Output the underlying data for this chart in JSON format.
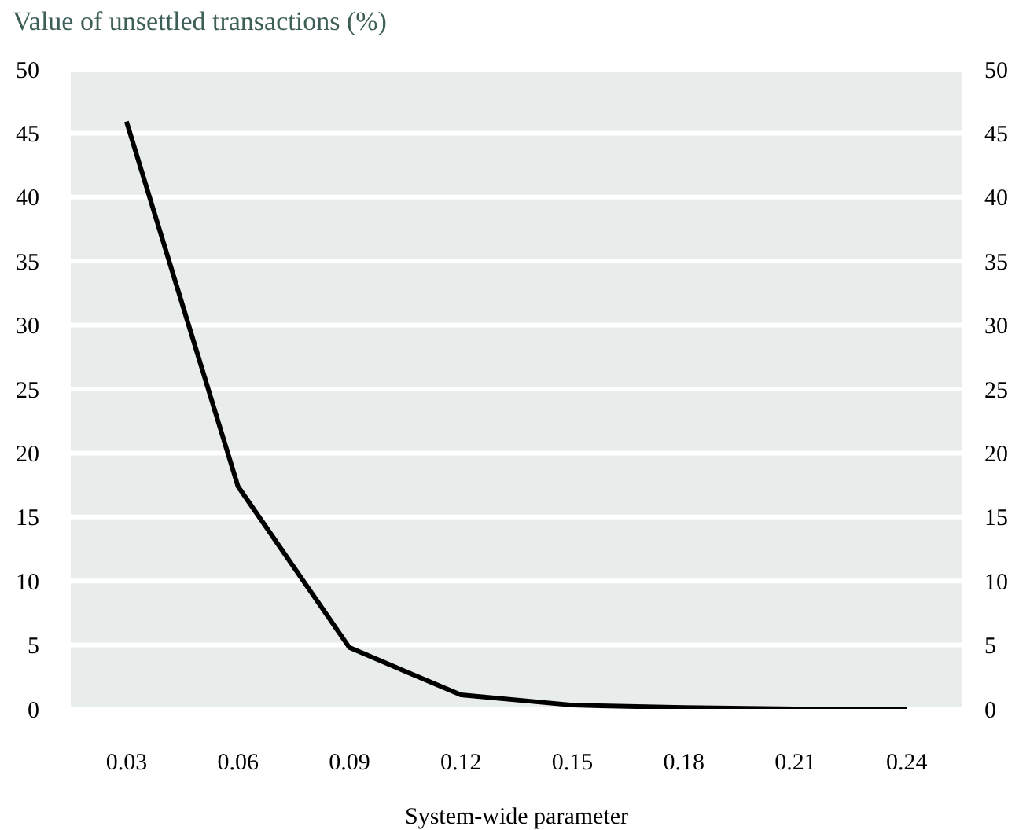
{
  "chart_data": {
    "type": "line",
    "title": "Value of unsettled transactions (%)",
    "xlabel": "System-wide parameter",
    "categories": [
      "0.03",
      "0.06",
      "0.09",
      "0.12",
      "0.15",
      "0.18",
      "0.21",
      "0.24"
    ],
    "series": [
      {
        "color": "#000000",
        "values": [
          45.9,
          17.4,
          4.8,
          1.1,
          0.3,
          0.1,
          0,
          0
        ]
      }
    ],
    "ylim": [
      0,
      50
    ],
    "yticks": [
      0,
      5,
      10,
      15,
      20,
      25,
      30,
      35,
      40,
      45,
      50
    ],
    "y2lim": [
      0,
      50
    ],
    "y2ticks": [
      0,
      5,
      10,
      15,
      20,
      25,
      30,
      35,
      40,
      45,
      50
    ],
    "grid": "y",
    "legend": false,
    "marker": "none",
    "line_style": "solid"
  }
}
